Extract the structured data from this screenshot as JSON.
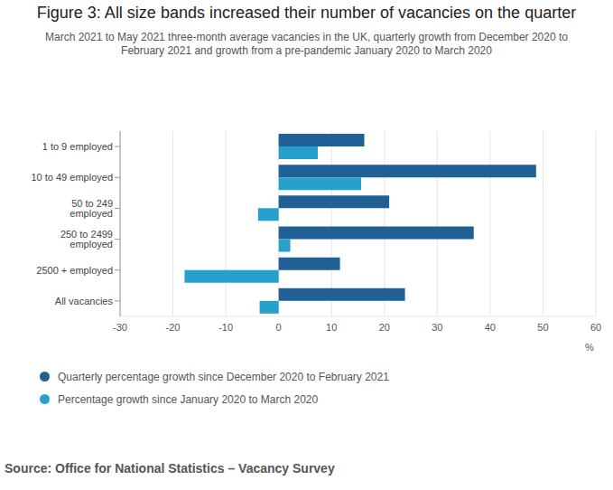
{
  "chart_data": {
    "type": "bar",
    "orientation": "horizontal",
    "title": "Figure 3: All size bands increased their number of vacancies on the quarter",
    "subtitle": "March 2021 to May 2021 three-month average vacancies in the UK, quarterly growth from December 2020 to February 2021 and growth from a pre-pandemic January 2020 to March 2020",
    "x_label": "%",
    "source": "Source: Office for National Statistics – Vacancy Survey",
    "categories": [
      "1 to 9 employed",
      "10 to 49 employed",
      "50 to 249 employed",
      "250 to 2499 employed",
      "2500 + employed",
      "All vacancies"
    ],
    "series": [
      {
        "name": "Quarterly percentage growth since December 2020 to February 2021",
        "color": "#206095",
        "values": [
          16.2,
          48.7,
          20.9,
          36.9,
          11.6,
          23.9
        ]
      },
      {
        "name": "Percentage growth since January 2020 to March 2020",
        "color": "#27a0cc",
        "values": [
          7.4,
          15.6,
          -3.9,
          2.2,
          -17.8,
          -3.6
        ]
      }
    ],
    "xlim": [
      -30,
      60
    ],
    "xticks": [
      -30,
      -20,
      -10,
      0,
      10,
      20,
      30,
      40,
      50,
      60
    ],
    "grid": true,
    "legend": "bottom-left",
    "data_labels": false
  }
}
